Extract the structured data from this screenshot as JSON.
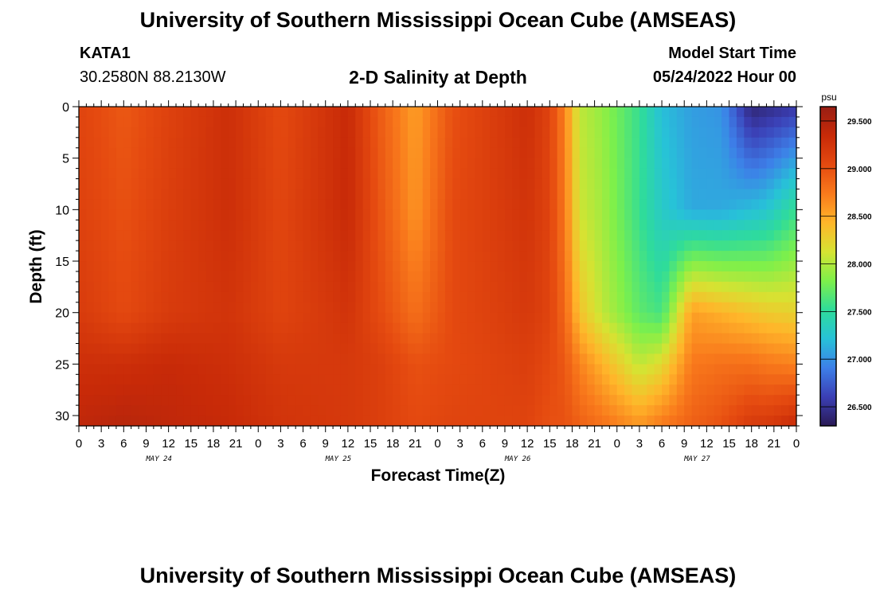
{
  "header": {
    "title": "University of Southern Mississippi Ocean Cube (AMSEAS)",
    "station": "KATA1",
    "coords": "30.2580N  88.2130W",
    "subtitle": "2-D Salinity at Depth",
    "model_start_label": "Model Start Time",
    "model_start_value": "05/24/2022 Hour 00",
    "footer_title": "University of Southern Mississippi Ocean Cube (AMSEAS)"
  },
  "chart_data": {
    "type": "heatmap",
    "title": "2-D Salinity at Depth",
    "xlabel": "Forecast Time(Z)",
    "ylabel": "Depth (ft)",
    "x_range_hours": [
      0,
      96
    ],
    "y_range_ft": [
      0,
      31
    ],
    "y_reversed": true,
    "x_tick_labels": [
      "0",
      "3",
      "6",
      "9",
      "12",
      "15",
      "18",
      "21",
      "0",
      "3",
      "6",
      "9",
      "12",
      "15",
      "18",
      "21",
      "0",
      "3",
      "6",
      "9",
      "12",
      "15",
      "18",
      "21",
      "0",
      "3",
      "6",
      "9",
      "12",
      "15",
      "18",
      "21",
      "0"
    ],
    "y_tick_labels": [
      "0",
      "5",
      "10",
      "15",
      "20",
      "25",
      "30"
    ],
    "y_tick_values": [
      0,
      5,
      10,
      15,
      20,
      25,
      30
    ],
    "day_labels": [
      "MAY 24",
      "MAY 25",
      "MAY 26",
      "MAY 27"
    ],
    "colorbar": {
      "unit": "psu",
      "tick_labels": [
        "29.500",
        "29.000",
        "28.500",
        "28.000",
        "27.500",
        "27.000",
        "26.500"
      ],
      "tick_values": [
        29.5,
        29.0,
        28.5,
        28.0,
        27.5,
        27.0,
        26.5
      ],
      "range": [
        26.3,
        29.65
      ],
      "colors": [
        "#2a1a55",
        "#3b3fb5",
        "#3d7fe8",
        "#27c2d8",
        "#2fdc9a",
        "#7ef04a",
        "#d6e332",
        "#ffb62a",
        "#f97a1c",
        "#e54a10",
        "#c82a08",
        "#981e14"
      ]
    },
    "profiles": [
      {
        "hour": 0,
        "depths": [
          0,
          10,
          20,
          25,
          31
        ],
        "values": [
          29.1,
          29.12,
          29.18,
          29.3,
          29.4
        ]
      },
      {
        "hour": 6,
        "depths": [
          0,
          10,
          20,
          25,
          31
        ],
        "values": [
          28.95,
          29.0,
          29.05,
          29.3,
          29.45
        ]
      },
      {
        "hour": 12,
        "depths": [
          0,
          10,
          20,
          25,
          31
        ],
        "values": [
          29.12,
          29.15,
          29.18,
          29.35,
          29.4
        ]
      },
      {
        "hour": 20,
        "depths": [
          0,
          10,
          20,
          25,
          31
        ],
        "values": [
          29.3,
          29.3,
          29.25,
          29.3,
          29.35
        ]
      },
      {
        "hour": 27,
        "depths": [
          0,
          10,
          20,
          25,
          31
        ],
        "values": [
          29.05,
          29.08,
          29.1,
          29.2,
          29.25
        ]
      },
      {
        "hour": 36,
        "depths": [
          0,
          10,
          20,
          25,
          31
        ],
        "values": [
          29.35,
          29.35,
          29.25,
          29.2,
          29.2
        ]
      },
      {
        "hour": 40,
        "depths": [
          0,
          10,
          20,
          25,
          31
        ],
        "values": [
          28.95,
          29.0,
          29.05,
          29.15,
          29.15
        ]
      },
      {
        "hour": 45,
        "depths": [
          0,
          10,
          20,
          25,
          31
        ],
        "values": [
          28.55,
          28.6,
          28.8,
          29.0,
          29.05
        ]
      },
      {
        "hour": 50,
        "depths": [
          0,
          10,
          20,
          25,
          31
        ],
        "values": [
          29.0,
          29.05,
          29.05,
          29.05,
          29.1
        ]
      },
      {
        "hour": 60,
        "depths": [
          0,
          10,
          20,
          25,
          31
        ],
        "values": [
          29.3,
          29.25,
          29.2,
          29.15,
          29.1
        ]
      },
      {
        "hour": 63,
        "depths": [
          0,
          10,
          20,
          25,
          31
        ],
        "values": [
          29.1,
          29.1,
          29.1,
          29.05,
          29.0
        ]
      },
      {
        "hour": 65,
        "depths": [
          0,
          10,
          20,
          25,
          31
        ],
        "values": [
          28.7,
          28.75,
          28.85,
          28.95,
          29.0
        ]
      },
      {
        "hour": 67,
        "depths": [
          0,
          10,
          20,
          25,
          31
        ],
        "values": [
          28.05,
          28.1,
          28.35,
          28.7,
          28.9
        ]
      },
      {
        "hour": 70,
        "depths": [
          0,
          10,
          20,
          25,
          31
        ],
        "values": [
          27.9,
          27.95,
          28.05,
          28.45,
          28.8
        ]
      },
      {
        "hour": 75,
        "depths": [
          0,
          10,
          20,
          25,
          31
        ],
        "values": [
          27.55,
          27.55,
          27.7,
          28.05,
          28.6
        ]
      },
      {
        "hour": 78,
        "depths": [
          0,
          10,
          20,
          25,
          31
        ],
        "values": [
          27.2,
          27.3,
          27.6,
          28.2,
          28.75
        ]
      },
      {
        "hour": 82,
        "depths": [
          0,
          10,
          20,
          25,
          31
        ],
        "values": [
          27.05,
          27.1,
          28.55,
          28.75,
          28.9
        ]
      },
      {
        "hour": 86,
        "depths": [
          0,
          10,
          20,
          25,
          31
        ],
        "values": [
          27.0,
          27.1,
          28.45,
          28.8,
          29.0
        ]
      },
      {
        "hour": 90,
        "depths": [
          0,
          10,
          20,
          25,
          31
        ],
        "values": [
          26.4,
          27.2,
          28.35,
          28.8,
          29.2
        ]
      },
      {
        "hour": 92,
        "depths": [
          0,
          10,
          20,
          25,
          31
        ],
        "values": [
          26.45,
          27.25,
          28.3,
          28.75,
          29.2
        ]
      },
      {
        "hour": 96,
        "depths": [
          0,
          10,
          20,
          25,
          31
        ],
        "values": [
          26.55,
          27.55,
          28.25,
          28.7,
          29.35
        ]
      }
    ]
  }
}
